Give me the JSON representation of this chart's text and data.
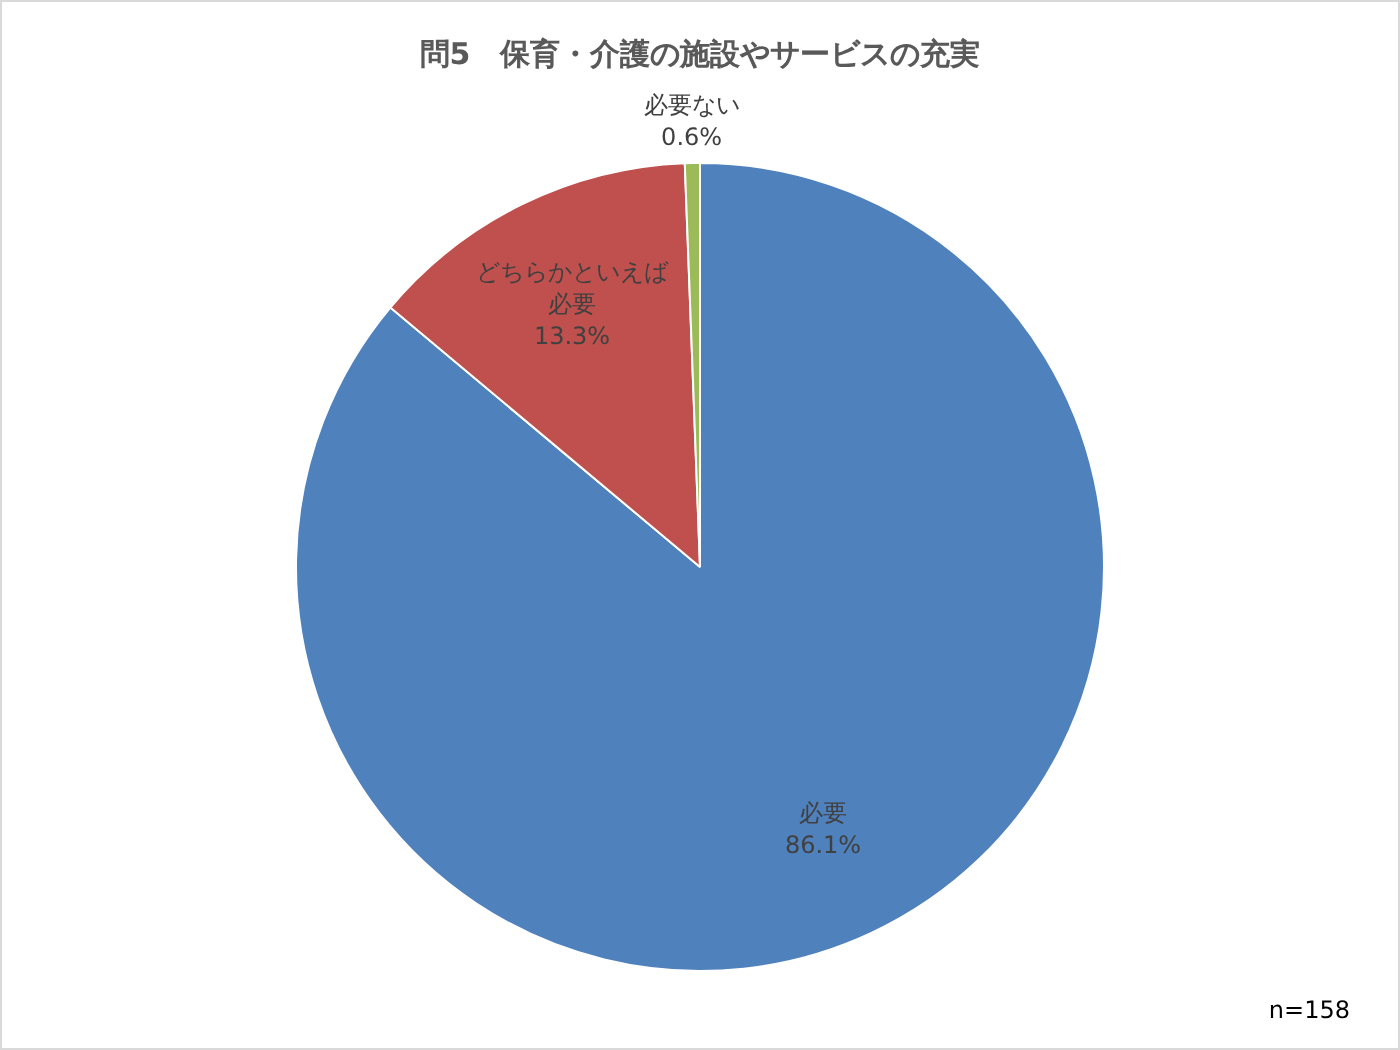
{
  "chart_data": {
    "type": "pie",
    "title": "問5　保育・介護の施設やサービスの充実",
    "categories": [
      "必要",
      "どちらかといえば必要",
      "必要ない"
    ],
    "values": [
      86.1,
      13.3,
      0.6
    ],
    "value_labels": [
      "86.1%",
      "13.3%",
      "0.6%"
    ],
    "colors": [
      "#4f81bd",
      "#c0504d",
      "#9bbb59"
    ],
    "legend": false,
    "annotations": [
      "n=158"
    ]
  }
}
